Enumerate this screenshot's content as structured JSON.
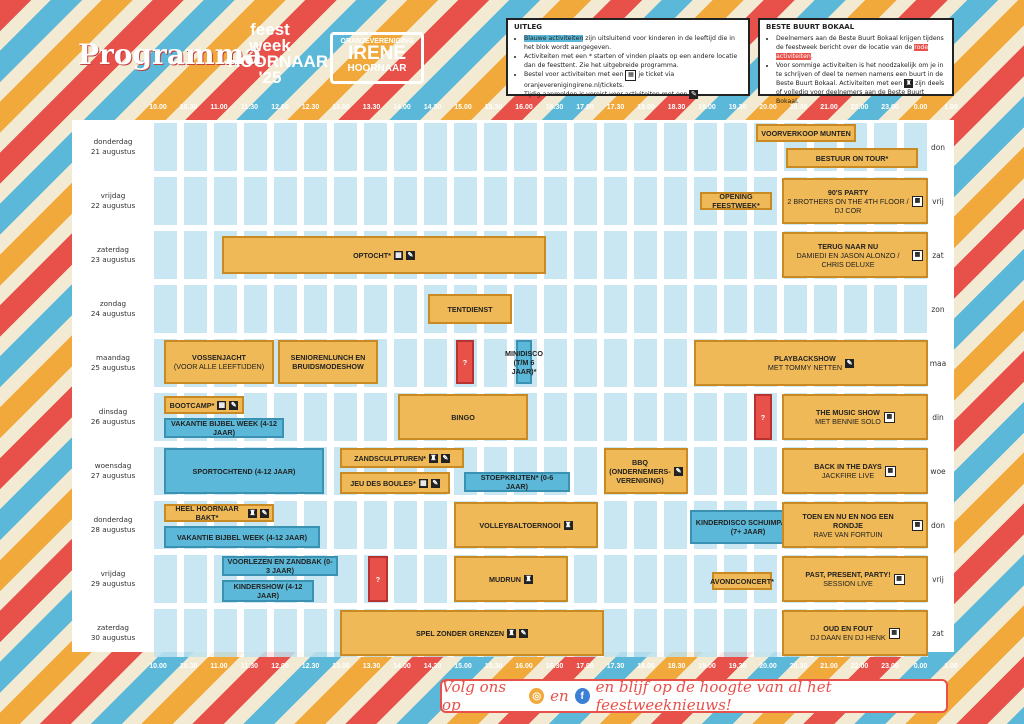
{
  "header": {
    "title": "Programma",
    "logo_feestweek": {
      "line1": "feest",
      "line2": "week",
      "line3": "HOORNAAR",
      "line4": "'25"
    },
    "logo_oranje": {
      "top": "ORANJEVERENIGING",
      "mid": "IRENE",
      "bot": "HOORNAAR"
    }
  },
  "legend_uitleg": {
    "heading": "UITLEG",
    "items": [
      {
        "pre": "",
        "hl": "Blauwe activiteiten",
        "post": " zijn uitsluitend voor kinderen in de leeftijd die in het blok wordt aangegeven."
      },
      {
        "pre": "Activiteiten met een * starten of vinden plaats op een andere locatie dan de feesttent. Zie het uitgebreide programma.",
        "hl": "",
        "post": ""
      },
      {
        "pre": "Bestel voor activiteiten met een",
        "hl": "",
        "post": " je ticket via oranjeverenigingirene.nl/tickets."
      },
      {
        "pre": "Tijdig aanmelden is vereist voor activiteiten met een",
        "hl": "",
        "post": ""
      }
    ]
  },
  "legend_buurt": {
    "heading": "BESTE BUURT BOKAAL",
    "items": [
      {
        "pre": "Deelnemers aan de Beste Buurt Bokaal krijgen tijdens de feestweek bericht over de locatie van de ",
        "hl": "rode activiteiten",
        "post": "."
      },
      {
        "pre": "Voor sommige activiteiten is het noodzakelijk om je in te schrijven of deel te nemen namens een buurt in de Beste Buurt Bokaal. Activiteiten met een",
        "hl": "",
        "post": " zijn deels of volledig voor deelnemers aan de Beste Buurt Bokaal."
      }
    ]
  },
  "times": [
    "10.00",
    "10.30",
    "11.00",
    "11.30",
    "12.00",
    "12.30",
    "13.00",
    "13.30",
    "14.00",
    "14.30",
    "15.00",
    "15.30",
    "16.00",
    "16.30",
    "17.00",
    "17.30",
    "18.00",
    "18.30",
    "19.00",
    "19.30",
    "20.00",
    "20.30",
    "21.00",
    "22.00",
    "23.00",
    "0.00",
    "1.00"
  ],
  "days": [
    {
      "name": "donderdag",
      "date": "21 augustus",
      "abbr": "don"
    },
    {
      "name": "vrijdag",
      "date": "22 augustus",
      "abbr": "vrij"
    },
    {
      "name": "zaterdag",
      "date": "23 augustus",
      "abbr": "zat"
    },
    {
      "name": "zondag",
      "date": "24 augustus",
      "abbr": "zon"
    },
    {
      "name": "maandag",
      "date": "25 augustus",
      "abbr": "maa"
    },
    {
      "name": "dinsdag",
      "date": "26 augustus",
      "abbr": "din"
    },
    {
      "name": "woensdag",
      "date": "27 augustus",
      "abbr": "woe"
    },
    {
      "name": "donderdag",
      "date": "28 augustus",
      "abbr": "don"
    },
    {
      "name": "vrijdag",
      "date": "29 augustus",
      "abbr": "vrij"
    },
    {
      "name": "zaterdag",
      "date": "30 augustus",
      "abbr": "zat"
    }
  ],
  "events": {
    "voorverkoop": "VOORVERKOOP MUNTEN",
    "bestuur": "BESTUUR ON TOUR*",
    "opening": "OPENING FEESTWEEK*",
    "party90": "90'S PARTY",
    "party90_sub": "2 BROTHERS ON THE 4TH FLOOR / DJ COR",
    "optocht": "OPTOCHT*",
    "terug": "TERUG NAAR NU",
    "terug_sub": "DAMIEDI EN JASON ALONZO / CHRIS DELUXE",
    "tentdienst": "TENTDIENST",
    "vossenjacht": "VOSSENJACHT",
    "vossenjacht_sub": "(VOOR ALLE LEEFTIJDEN)",
    "seniorenlunch": "SENIORENLUNCH EN BRUIDSMODESHOW",
    "q1": "?",
    "minidisco": "MINIDISCO (T/M 6 JAAR)*",
    "playback": "PLAYBACKSHOW",
    "playback_sub": "MET TOMMY NETTEN",
    "bootcamp": "BOOTCAMP*",
    "vbw1": "VAKANTIE BIJBEL WEEK (4-12 JAAR)",
    "bingo": "BINGO",
    "q2": "?",
    "musicshow": "THE MUSIC SHOW",
    "musicshow_sub": "MET BENNIE SOLO",
    "zand": "ZANDSCULPTUREN*",
    "sport": "SPORTOCHTEND (4-12 JAAR)",
    "jeu": "JEU DES BOULES*",
    "stoep": "STOEPKRIJTEN* (0-6 JAAR)",
    "bbq": "BBQ (ONDERNEMERS-VERENIGING)",
    "backdays": "BACK IN THE DAYS",
    "backdays_sub": "JACKFIRE LIVE",
    "bakt": "HEEL HOORNAAR BAKT*",
    "vbw2": "VAKANTIE BIJBEL WEEK (4-12 JAAR)",
    "volley": "VOLLEYBALTOERNOOI",
    "kinderdisco": "KINDERDISCO SCHUIMPARTY (7+ JAAR)",
    "toen": "TOEN EN NU EN NOG EEN RONDJE",
    "toen_sub": "RAVE VAN FORTUIN",
    "voorlezen": "VOORLEZEN EN ZANDBAK (0-3 JAAR)",
    "kindershow": "KINDERSHOW (4-12 JAAR)",
    "q3": "?",
    "mudrun": "MUDRUN",
    "avondconcert": "AVONDCONCERT*",
    "past": "PAST, PRESENT, PARTY!",
    "past_sub": "SESSION LIVE",
    "spel": "SPEL ZONDER GRENZEN",
    "oud": "OUD EN FOUT",
    "oud_sub": "DJ DAAN EN DJ HENK"
  },
  "footer": {
    "pre": "Volg ons op",
    "mid": "en",
    "post": "en blijf op de hoogte van al het feestweeknieuws!"
  },
  "colors": {
    "orange": "#f0b957",
    "blue": "#5bb8d8",
    "red": "#e8504a"
  },
  "icons": [
    "ticket-icon",
    "pencil-icon",
    "trophy-icon",
    "qr-icon",
    "instagram-icon",
    "facebook-icon"
  ]
}
